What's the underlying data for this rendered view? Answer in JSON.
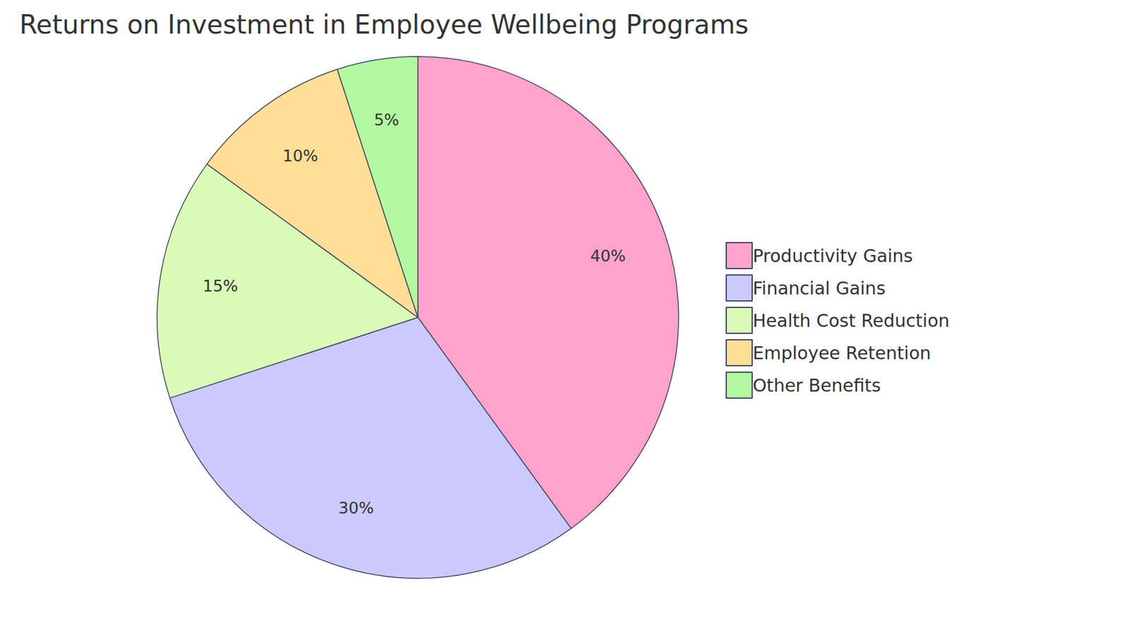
{
  "chart_data": {
    "type": "pie",
    "title": "Returns on Investment in Employee Wellbeing Programs",
    "categories": [
      "Productivity Gains",
      "Financial Gains",
      "Health Cost Reduction",
      "Employee Retention",
      "Other Benefits"
    ],
    "values": [
      40,
      30,
      15,
      10,
      5
    ],
    "value_labels": [
      "40%",
      "30%",
      "15%",
      "10%",
      "5%"
    ],
    "colors": [
      "#ffa3cc",
      "#cacaff",
      "#dafab8",
      "#ffde97",
      "#b2f9a1"
    ],
    "data_labels": true,
    "legend": "right"
  }
}
